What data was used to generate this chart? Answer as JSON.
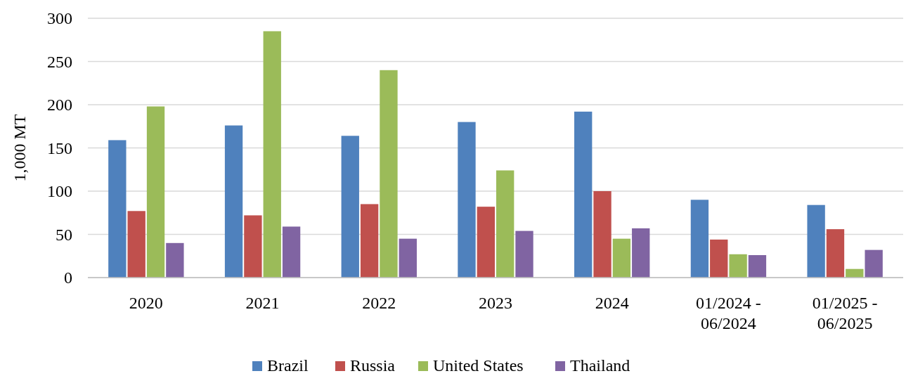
{
  "chart_data": {
    "type": "bar",
    "ylabel": "1,000 MT",
    "categories": [
      "2020",
      "2021",
      "2022",
      "2023",
      "2024",
      "01/2024 - 06/2024",
      "01/2025 - 06/2025"
    ],
    "series": [
      {
        "name": "Brazil",
        "color": "#4f81bd",
        "values": [
          159,
          176,
          164,
          180,
          192,
          90,
          84
        ]
      },
      {
        "name": "Russia",
        "color": "#c0504d",
        "values": [
          77,
          72,
          85,
          82,
          100,
          44,
          56
        ]
      },
      {
        "name": "United States",
        "color": "#9bbb59",
        "values": [
          198,
          285,
          240,
          124,
          45,
          27,
          10
        ]
      },
      {
        "name": "Thailand",
        "color": "#8064a2",
        "values": [
          40,
          59,
          45,
          54,
          57,
          26,
          32
        ]
      }
    ],
    "ylim": [
      0,
      300
    ],
    "yticks": [
      0,
      50,
      100,
      150,
      200,
      250,
      300
    ],
    "grid": "y",
    "legend": "bottom"
  }
}
